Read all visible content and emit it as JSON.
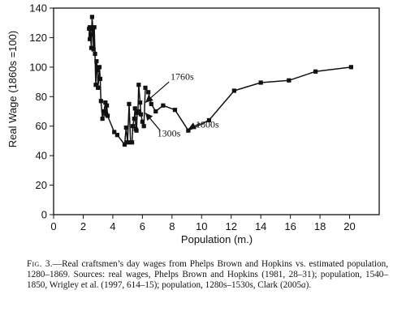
{
  "chart_data": {
    "type": "line",
    "title": "",
    "xlabel": "Population (m.)",
    "ylabel": "Real Wage (1860s =100)",
    "xlim": [
      0,
      22
    ],
    "ylim": [
      0,
      140
    ],
    "x_ticks": [
      "0",
      "2",
      "4",
      "6",
      "8",
      "10",
      "12",
      "14",
      "16",
      "18",
      "20"
    ],
    "y_ticks": [
      "0",
      "20",
      "40",
      "60",
      "80",
      "100",
      "120",
      "140"
    ],
    "grid": false,
    "legend": "none",
    "series": [
      {
        "color": "#111111",
        "marker": "square",
        "points": [
          [
            2.4,
            126
          ],
          [
            2.45,
            119
          ],
          [
            2.5,
            122
          ],
          [
            2.45,
            127
          ],
          [
            2.55,
            113
          ],
          [
            2.6,
            134
          ],
          [
            2.65,
            126
          ],
          [
            2.7,
            112
          ],
          [
            2.75,
            127
          ],
          [
            2.8,
            109
          ],
          [
            2.85,
            88
          ],
          [
            2.9,
            104
          ],
          [
            2.95,
            98
          ],
          [
            3.0,
            86
          ],
          [
            3.1,
            100
          ],
          [
            3.15,
            92
          ],
          [
            3.2,
            77
          ],
          [
            3.3,
            65
          ],
          [
            3.4,
            70
          ],
          [
            3.5,
            76
          ],
          [
            3.55,
            68
          ],
          [
            3.6,
            74
          ],
          [
            3.65,
            67
          ],
          [
            4.1,
            56
          ],
          [
            4.3,
            54
          ],
          [
            4.8,
            47.5
          ],
          [
            4.9,
            59
          ],
          [
            5.0,
            49
          ],
          [
            5.1,
            75
          ],
          [
            5.2,
            49
          ],
          [
            5.3,
            49
          ],
          [
            5.35,
            60
          ],
          [
            5.45,
            65
          ],
          [
            5.5,
            72
          ],
          [
            5.55,
            58
          ],
          [
            5.6,
            57
          ],
          [
            5.65,
            69
          ],
          [
            5.7,
            70
          ],
          [
            5.75,
            88
          ],
          [
            5.85,
            76
          ],
          [
            5.9,
            68
          ],
          [
            6.0,
            63
          ],
          [
            6.1,
            60
          ],
          [
            6.2,
            86
          ],
          [
            6.4,
            83
          ],
          [
            6.6,
            75
          ],
          [
            6.9,
            70
          ],
          [
            7.4,
            74
          ],
          [
            8.2,
            71
          ],
          [
            9.1,
            57
          ],
          [
            10.5,
            64
          ],
          [
            12.2,
            84
          ],
          [
            14.0,
            89.5
          ],
          [
            15.9,
            91
          ],
          [
            17.7,
            97
          ],
          [
            20.1,
            100
          ]
        ]
      }
    ],
    "annotations": [
      {
        "text": "1760s",
        "x": 7.9,
        "y": 91.5
      },
      {
        "text": "1300s",
        "x": 7.0,
        "y": 53
      },
      {
        "text": "1800s",
        "x": 9.6,
        "y": 59
      }
    ]
  },
  "caption": {
    "label": "Fig. 3.",
    "text": "—Real craftsmen’s day wages from Phelps Brown and Hopkins vs. estimated population, 1280–1869. Sources: real wages, Phelps Brown and Hopkins (1981, 28–31); population, 1540–1850, Wrigley et al. (1997, 614–15); population, 1280s–1530s, Clark (2005",
    "italic_suffix": "a",
    "end": ")."
  }
}
